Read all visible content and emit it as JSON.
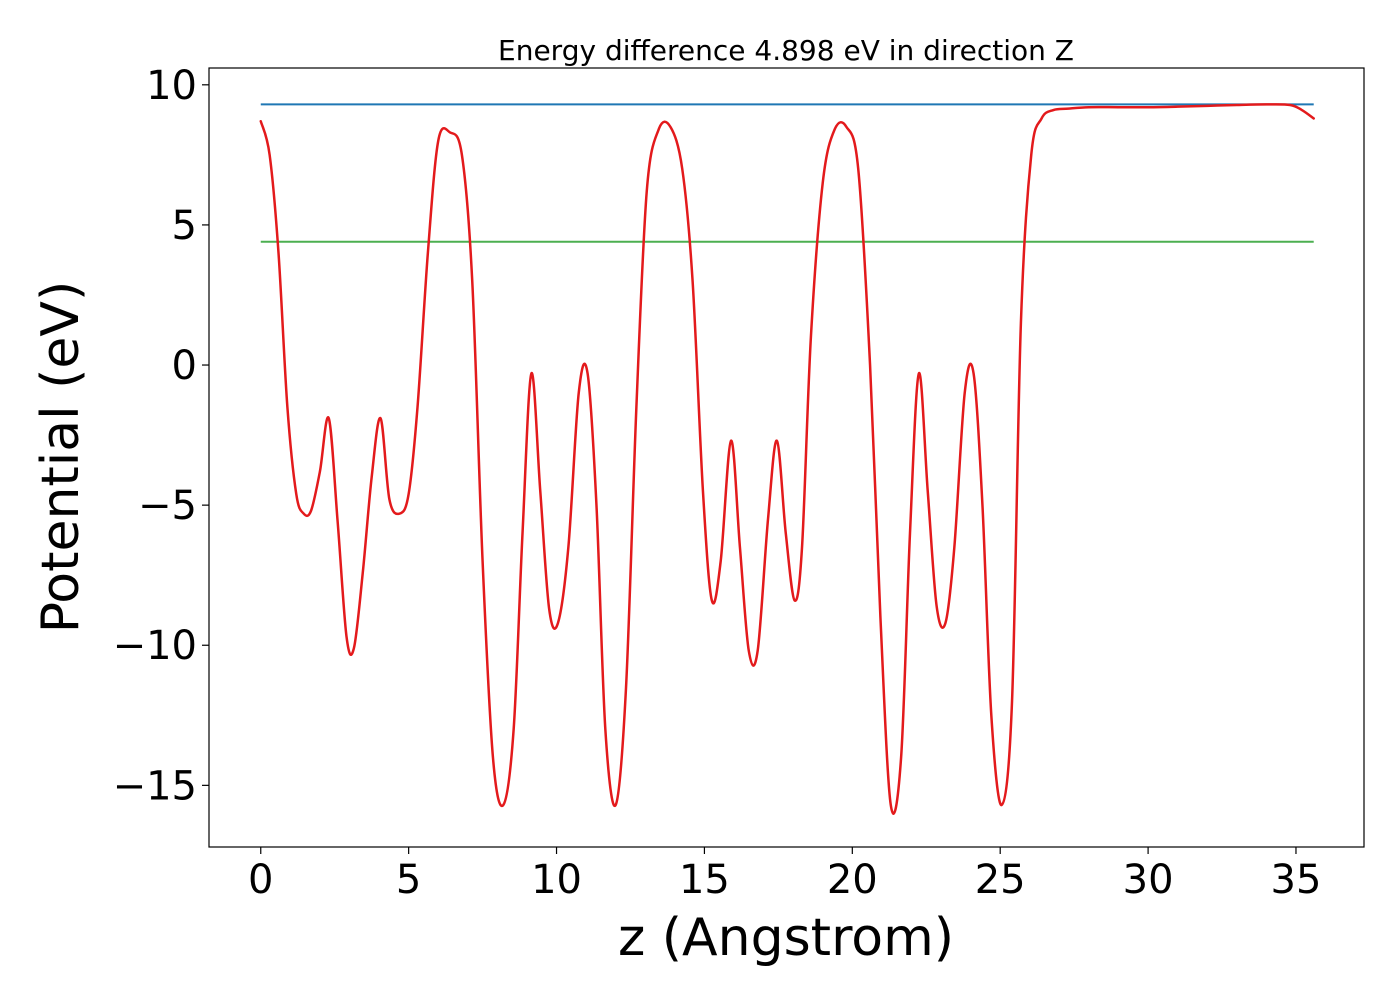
{
  "chart_data": {
    "type": "line",
    "title": "Energy difference 4.898 eV in direction Z",
    "xlabel": "z (Angstrom)",
    "ylabel": "Potential (eV)",
    "xlim": [
      -1.75,
      37.3
    ],
    "ylim": [
      -17.2,
      10.6
    ],
    "x_ticks": [
      0,
      5,
      10,
      15,
      20,
      25,
      30,
      35
    ],
    "y_ticks": [
      -15,
      -10,
      -5,
      0,
      5,
      10
    ],
    "x_tick_labels": [
      "0",
      "5",
      "10",
      "15",
      "20",
      "25",
      "30",
      "35"
    ],
    "y_tick_labels": [
      "−15",
      "−10",
      "−5",
      "0",
      "5",
      "10"
    ],
    "grid": false,
    "legend": "none",
    "series": [
      {
        "color": "#1f77b4",
        "style": "hline",
        "x": [
          0,
          35.6
        ],
        "y": [
          9.3,
          9.3
        ]
      },
      {
        "color": "#4caf50",
        "style": "hline",
        "x": [
          0,
          35.6
        ],
        "y": [
          4.4,
          4.4
        ]
      },
      {
        "color": "#e31a1c",
        "style": "line",
        "x": [
          0,
          0.3,
          0.6,
          0.9,
          1.2,
          1.45,
          1.7,
          2.0,
          2.3,
          2.6,
          2.9,
          3.15,
          3.45,
          3.75,
          4.05,
          4.35,
          4.7,
          5.0,
          5.3,
          5.65,
          6.0,
          6.4,
          6.8,
          7.15,
          7.5,
          7.85,
          8.2,
          8.55,
          8.85,
          9.15,
          9.45,
          9.75,
          10.05,
          10.4,
          10.75,
          11.05,
          11.35,
          11.65,
          12.0,
          12.35,
          12.7,
          13.05,
          13.45,
          13.85,
          14.25,
          14.6,
          14.95,
          15.25,
          15.55,
          15.9,
          16.2,
          16.5,
          16.8,
          17.15,
          17.45,
          17.75,
          18.05,
          18.3,
          18.6,
          19.0,
          19.4,
          19.8,
          20.2,
          20.6,
          20.95,
          21.3,
          21.65,
          21.95,
          22.25,
          22.55,
          22.85,
          23.15,
          23.45,
          23.8,
          24.1,
          24.4,
          24.7,
          25.05,
          25.4,
          25.7,
          26.05,
          26.4,
          26.8,
          27.3,
          28.0,
          29.0,
          30.0,
          31.0,
          32.0,
          33.0,
          34.0,
          34.8,
          35.2,
          35.6
        ],
        "y": [
          8.7,
          7.5,
          4.0,
          -1.5,
          -4.6,
          -5.3,
          -5.2,
          -3.8,
          -1.9,
          -5.6,
          -9.7,
          -10.1,
          -7.4,
          -4.0,
          -1.9,
          -4.8,
          -5.3,
          -4.6,
          -1.5,
          4.0,
          8.0,
          8.3,
          7.5,
          3.0,
          -7.0,
          -14.0,
          -15.7,
          -13.0,
          -6.0,
          -0.3,
          -4.5,
          -8.7,
          -9.2,
          -6.5,
          -1.0,
          -0.3,
          -5.0,
          -13.0,
          -15.7,
          -11.5,
          -1.5,
          6.2,
          8.4,
          8.5,
          7.0,
          3.0,
          -4.5,
          -8.4,
          -7.0,
          -2.7,
          -6.5,
          -10.2,
          -10.2,
          -5.5,
          -2.7,
          -6.0,
          -8.4,
          -6.5,
          1.0,
          6.5,
          8.4,
          8.5,
          7.0,
          0.0,
          -9.0,
          -15.7,
          -14.0,
          -6.0,
          -0.3,
          -4.5,
          -8.6,
          -9.2,
          -6.5,
          -1.0,
          -0.3,
          -5.0,
          -12.5,
          -15.7,
          -12.0,
          1.5,
          7.5,
          8.8,
          9.1,
          9.15,
          9.2,
          9.2,
          9.2,
          9.22,
          9.25,
          9.28,
          9.3,
          9.28,
          9.1,
          8.8
        ]
      }
    ]
  }
}
